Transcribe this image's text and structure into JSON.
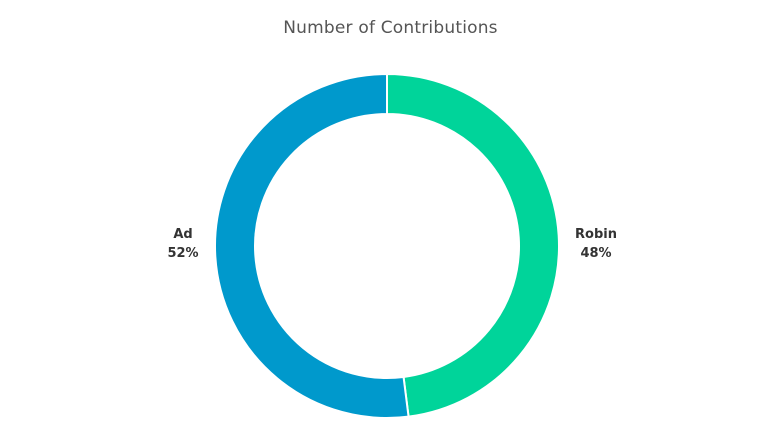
{
  "chart_data": {
    "type": "pie",
    "title": "Number of Contributions",
    "donut": true,
    "slices": [
      {
        "label": "Robin",
        "percent_label": "48%",
        "value": 48,
        "color": "#00d49a"
      },
      {
        "label": "Ad",
        "percent_label": "52%",
        "value": 52,
        "color": "#0099cc"
      }
    ],
    "start_angle_deg": 0,
    "direction": "clockwise",
    "slice_border_color": "#ffffff"
  }
}
